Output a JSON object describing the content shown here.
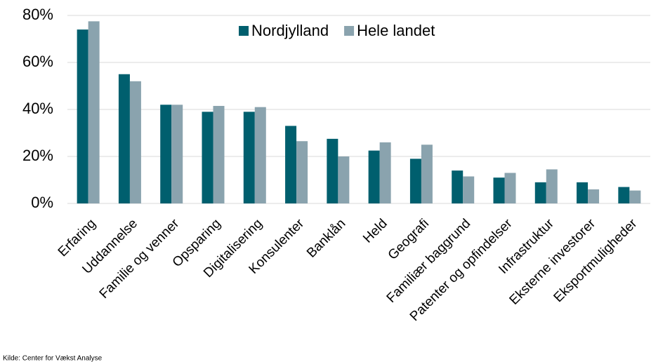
{
  "chart_data": {
    "type": "bar",
    "categories": [
      "Erfaring",
      "Uddannelse",
      "Familie og venner",
      "Opsparing",
      "Digitalisering",
      "Konsulenter",
      "Banklån",
      "Held",
      "Geografi",
      "Familiær baggrund",
      "Patenter og opfindelser",
      "Infrastruktur",
      "Eksterne investorer",
      "Eksportmuligheder"
    ],
    "series": [
      {
        "name": "Nordjylland",
        "color": "#005f6e",
        "values": [
          74,
          55,
          42,
          39,
          39,
          33,
          27.5,
          22.5,
          19,
          14,
          11,
          9,
          9,
          7
        ]
      },
      {
        "name": "Hele landet",
        "color": "#8aa3ae",
        "values": [
          77.5,
          52,
          42,
          41.5,
          41,
          26.5,
          20,
          26,
          25,
          11.5,
          13,
          14.5,
          6,
          5.5
        ]
      }
    ],
    "ylim": [
      0,
      80
    ],
    "yticks": [
      {
        "value": 0,
        "label": "0%"
      },
      {
        "value": 20,
        "label": "20%"
      },
      {
        "value": 40,
        "label": "40%"
      },
      {
        "value": 60,
        "label": "60%"
      },
      {
        "value": 80,
        "label": "80%"
      }
    ],
    "grid": true,
    "legend": "top",
    "source": "Kilde: Center for Vækst Analyse"
  }
}
